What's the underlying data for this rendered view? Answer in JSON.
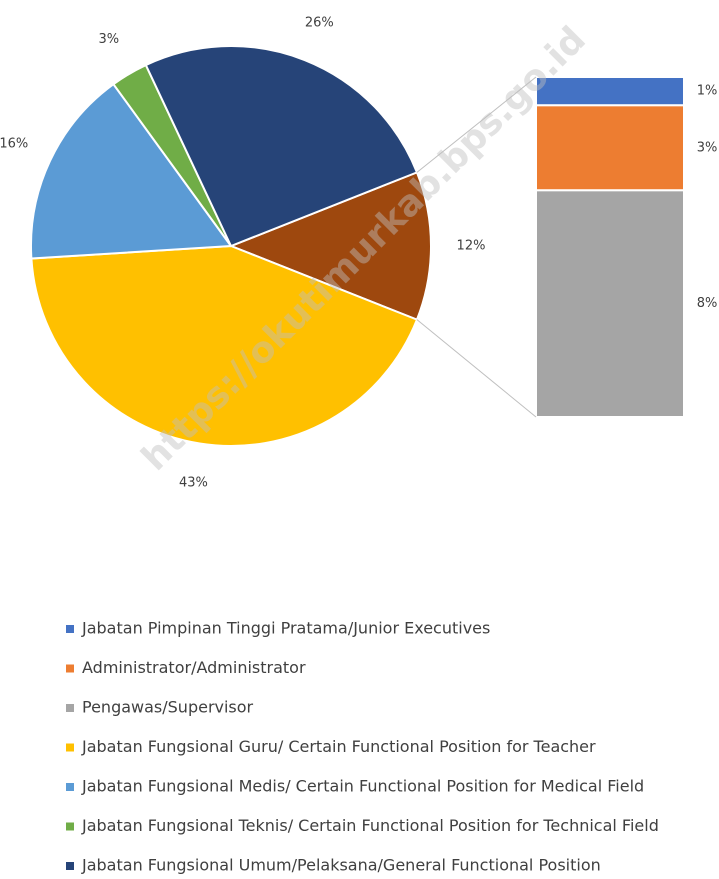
{
  "chart_data": {
    "type": "bar-of-pie",
    "watermark": "https://okutimurkab.bps.go.id",
    "pie": {
      "categories": [
        "Jabatan Fungsional Guru/ Certain Functional Position for Teacher",
        "Jabatan Fungsional Medis/ Certain Functional Position for Medical Field",
        "Jabatan Fungsional Teknis/ Certain Functional Position for Technical Field",
        "Jabatan Fungsional Umum/Pelaksana/General Functional Position"
      ],
      "values": [
        43,
        16,
        3,
        26
      ],
      "value_labels": [
        "43%",
        "16%",
        "3%",
        "26%"
      ],
      "colors": [
        "#ffc000",
        "#5b9bd5",
        "#70ad47",
        "#264478"
      ]
    },
    "other": {
      "value": 12,
      "value_label": "12%",
      "color": "#9e480e"
    },
    "bar": {
      "categories": [
        "Jabatan Pimpinan Tinggi Pratama/Junior Executives",
        "Administrator/Administrator",
        "Pengawas/Supervisor"
      ],
      "values": [
        1,
        3,
        8
      ],
      "value_labels": [
        "1%",
        "3%",
        "8%"
      ],
      "colors": [
        "#4472c4",
        "#ed7d31",
        "#a5a5a5"
      ]
    }
  }
}
